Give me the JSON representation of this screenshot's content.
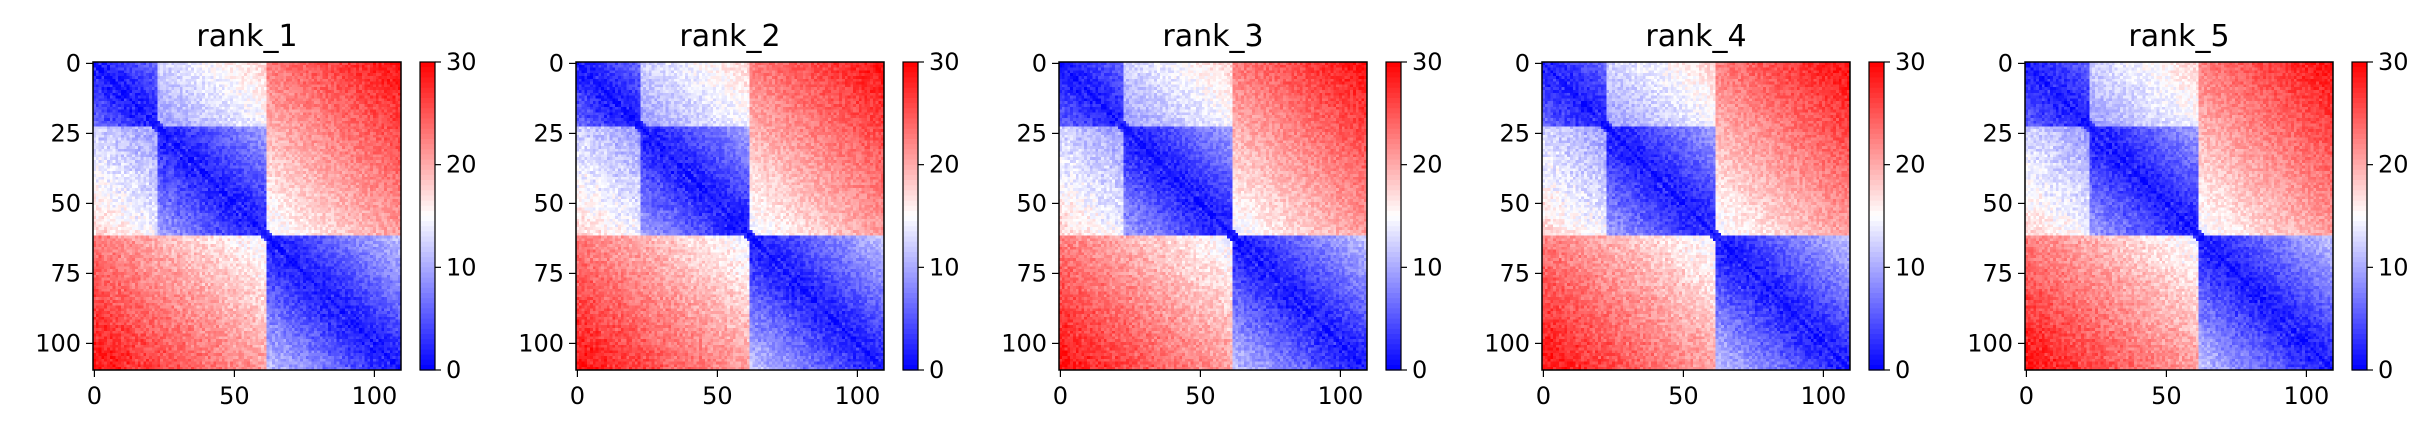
{
  "chart_data": [
    {
      "type": "heatmap",
      "title": "rank_1",
      "x_ticks": [
        0,
        50,
        100
      ],
      "y_ticks": [
        0,
        25,
        50,
        75,
        100
      ],
      "matrix_size": 110,
      "colorbar": {
        "ticks": [
          0,
          10,
          20,
          30
        ],
        "range": [
          0,
          30
        ],
        "colormap": "bwr"
      },
      "domain_breaks": [
        23,
        62
      ],
      "noise_seed": 11
    },
    {
      "type": "heatmap",
      "title": "rank_2",
      "x_ticks": [
        0,
        50,
        100
      ],
      "y_ticks": [
        0,
        25,
        50,
        75,
        100
      ],
      "matrix_size": 110,
      "colorbar": {
        "ticks": [
          0,
          10,
          20,
          30
        ],
        "range": [
          0,
          30
        ],
        "colormap": "bwr"
      },
      "domain_breaks": [
        23,
        62
      ],
      "noise_seed": 23
    },
    {
      "type": "heatmap",
      "title": "rank_3",
      "x_ticks": [
        0,
        50,
        100
      ],
      "y_ticks": [
        0,
        25,
        50,
        75,
        100
      ],
      "matrix_size": 110,
      "colorbar": {
        "ticks": [
          0,
          10,
          20,
          30
        ],
        "range": [
          0,
          30
        ],
        "colormap": "bwr"
      },
      "domain_breaks": [
        23,
        62
      ],
      "noise_seed": 37
    },
    {
      "type": "heatmap",
      "title": "rank_4",
      "x_ticks": [
        0,
        50,
        100
      ],
      "y_ticks": [
        0,
        25,
        50,
        75,
        100
      ],
      "matrix_size": 110,
      "colorbar": {
        "ticks": [
          0,
          10,
          20,
          30
        ],
        "range": [
          0,
          30
        ],
        "colormap": "bwr"
      },
      "domain_breaks": [
        23,
        62
      ],
      "noise_seed": 41
    },
    {
      "type": "heatmap",
      "title": "rank_5",
      "x_ticks": [
        0,
        50,
        100
      ],
      "y_ticks": [
        0,
        25,
        50,
        75,
        100
      ],
      "matrix_size": 110,
      "colorbar": {
        "ticks": [
          0,
          10,
          20,
          30
        ],
        "range": [
          0,
          30
        ],
        "colormap": "bwr"
      },
      "domain_breaks": [
        23,
        62
      ],
      "noise_seed": 53
    }
  ]
}
